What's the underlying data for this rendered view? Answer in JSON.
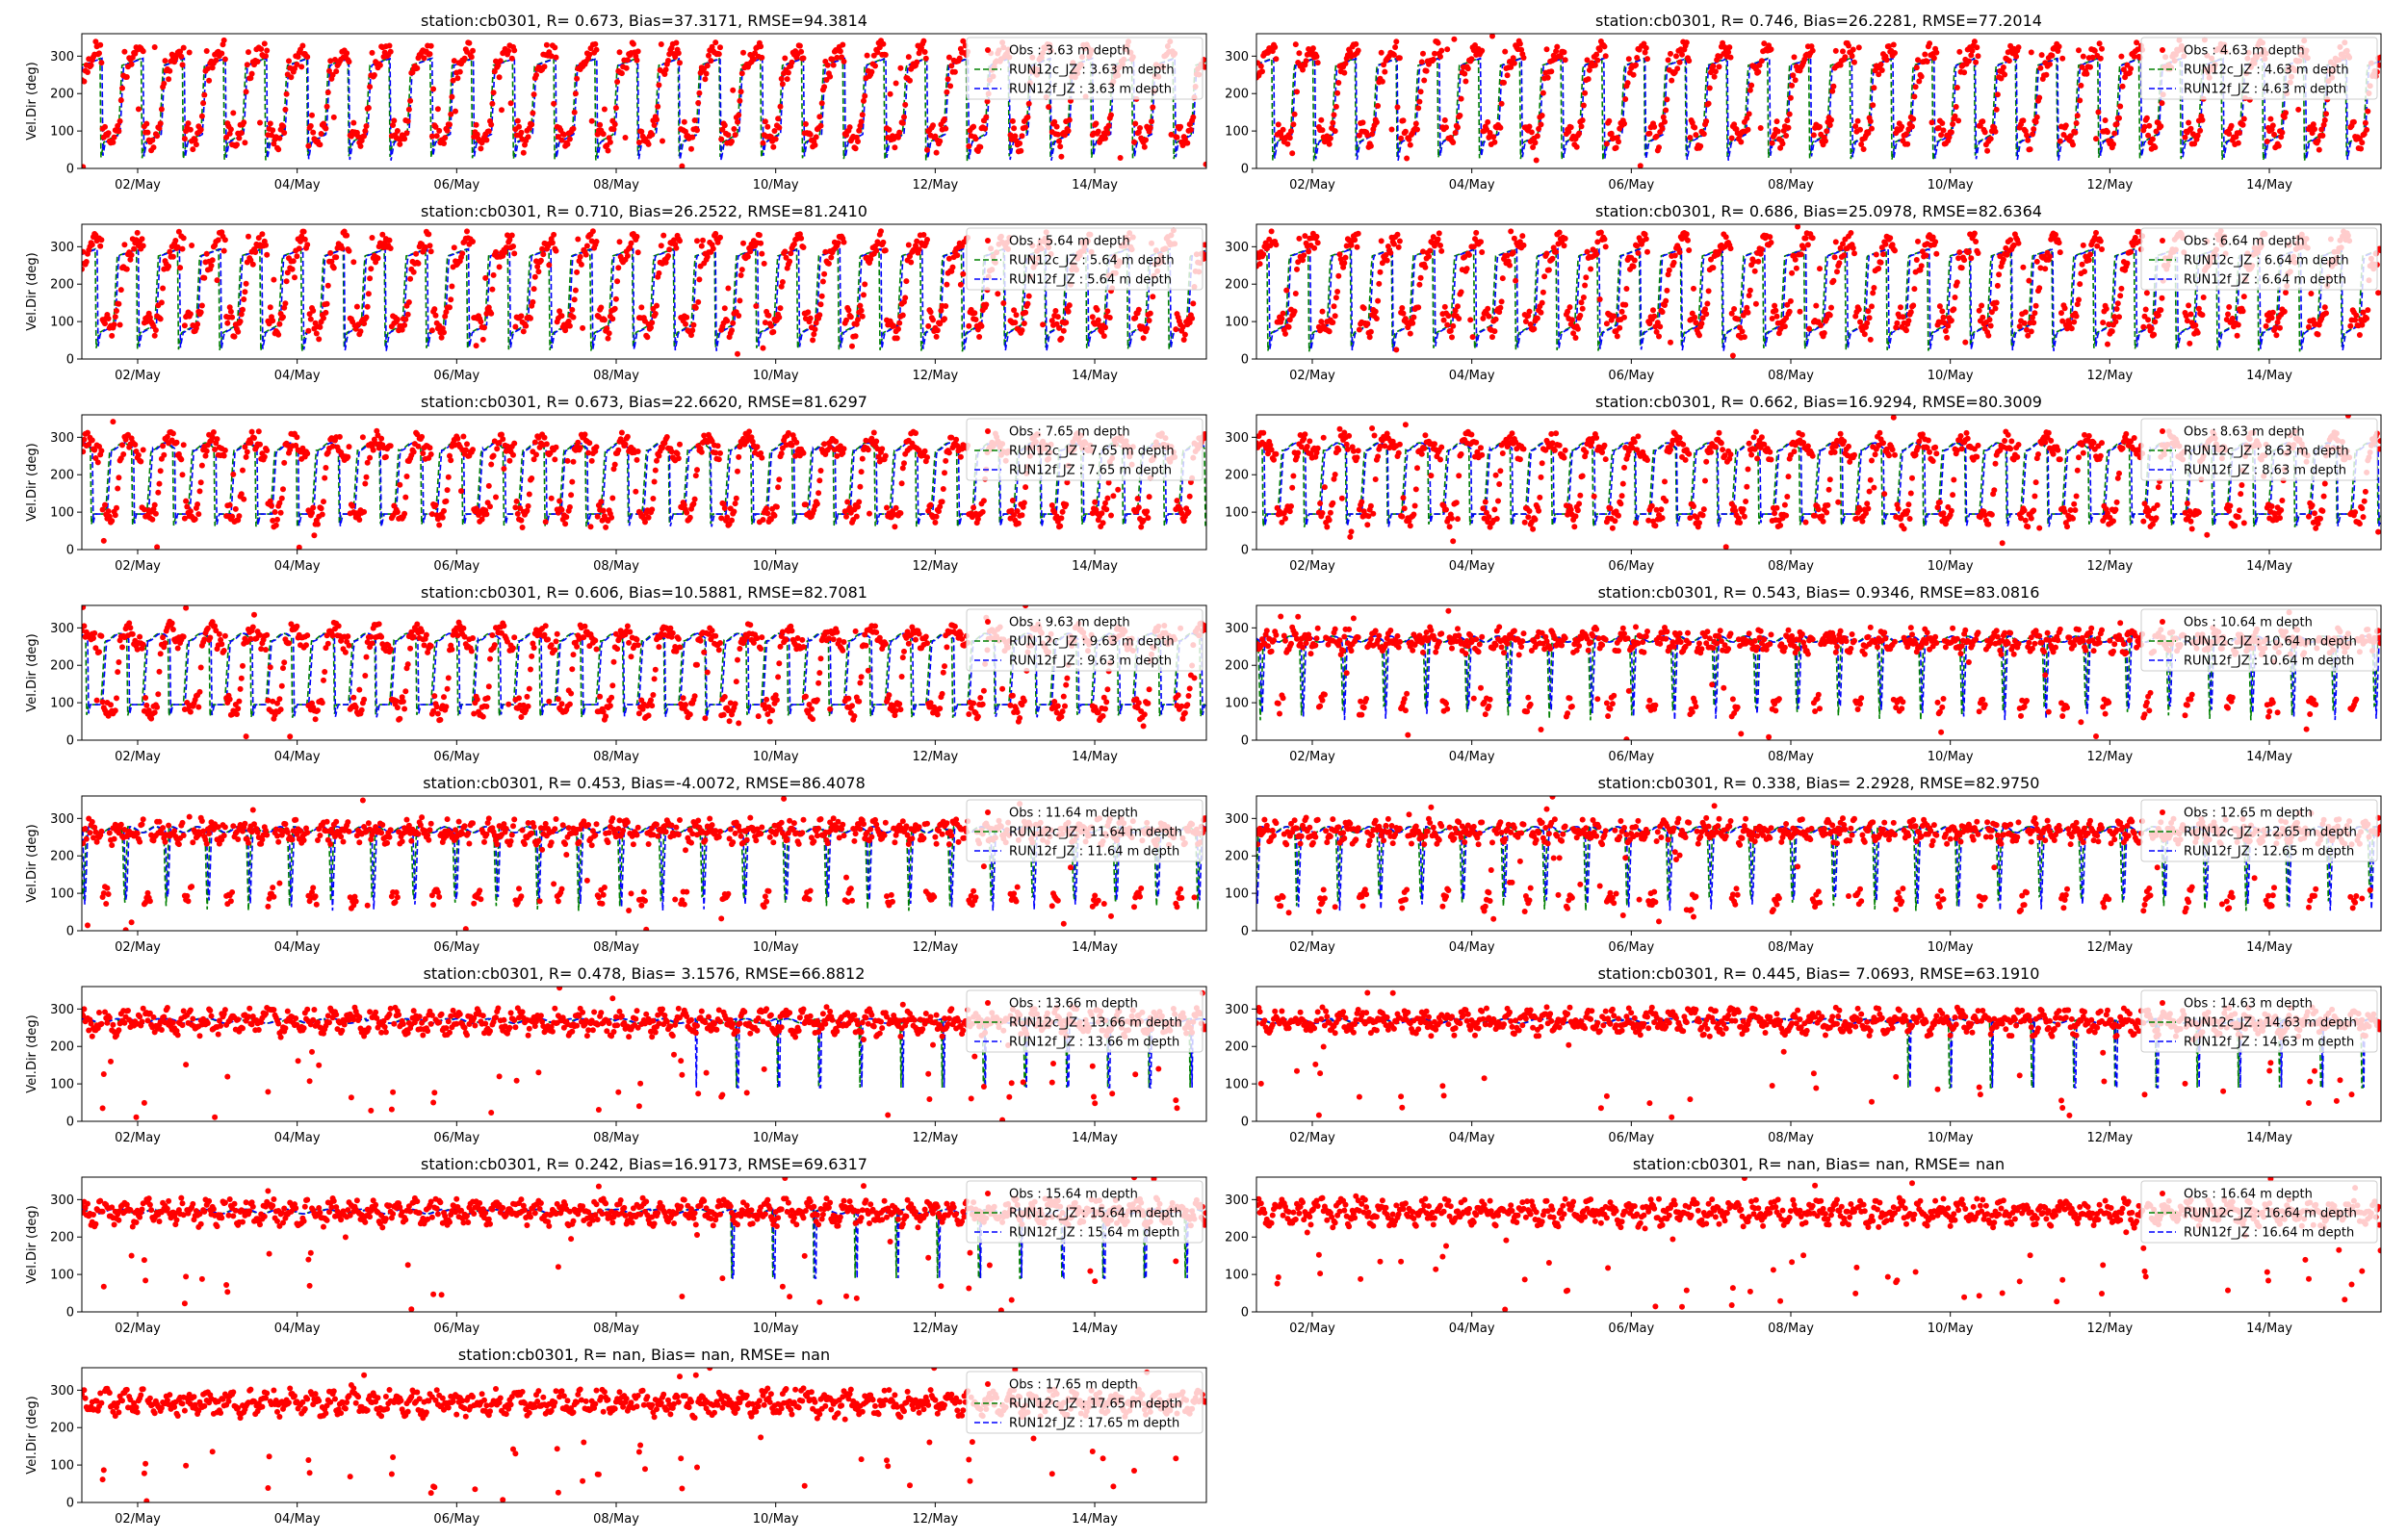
{
  "figure": {
    "x_tick_labels": [
      "02/May",
      "04/May",
      "06/May",
      "08/May",
      "10/May",
      "12/May",
      "14/May"
    ],
    "ylabel": "Vel.Dir (deg)",
    "colors": {
      "obs": "#ff0000",
      "run12c": "#008000",
      "run12f": "#0000ff"
    }
  },
  "chart_data": [
    {
      "type": "scatter",
      "title": "station:cb0301, R= 0.673, Bias=37.3171, RMSE=94.3814",
      "depth": 3.63,
      "ylabel": "Vel.Dir (deg)",
      "legend": [
        "Obs : 3.63 m depth",
        "RUN12c_JZ : 3.63 m depth",
        "RUN12f_JZ : 3.63 m depth"
      ],
      "x_range_days": [
        1.3,
        15.4
      ],
      "ylim": [
        0,
        360
      ],
      "yticks": [
        0,
        100,
        200,
        300
      ],
      "xticks": [
        2,
        4,
        6,
        8,
        10,
        12,
        14
      ],
      "x_tick_labels": [
        "02/May",
        "04/May",
        "06/May",
        "08/May",
        "10/May",
        "12/May",
        "14/May"
      ],
      "pattern": "sawtooth",
      "base": 80,
      "model_on": true
    },
    {
      "type": "scatter",
      "title": "station:cb0301, R= 0.746, Bias=26.2281, RMSE=77.2014",
      "depth": 4.63,
      "ylabel": "",
      "legend": [
        "Obs : 4.63 m depth",
        "RUN12c_JZ : 4.63 m depth",
        "RUN12f_JZ : 4.63 m depth"
      ],
      "x_range_days": [
        1.3,
        15.4
      ],
      "ylim": [
        0,
        360
      ],
      "yticks": [
        0,
        100,
        200,
        300
      ],
      "xticks": [
        2,
        4,
        6,
        8,
        10,
        12,
        14
      ],
      "x_tick_labels": [
        "02/May",
        "04/May",
        "06/May",
        "08/May",
        "10/May",
        "12/May",
        "14/May"
      ],
      "pattern": "sawtooth",
      "base": 85,
      "model_on": true
    },
    {
      "type": "scatter",
      "title": "station:cb0301, R= 0.710, Bias=26.2522, RMSE=81.2410",
      "depth": 5.64,
      "ylabel": "Vel.Dir (deg)",
      "legend": [
        "Obs : 5.64 m depth",
        "RUN12c_JZ : 5.64 m depth",
        "RUN12f_JZ : 5.64 m depth"
      ],
      "x_range_days": [
        1.3,
        15.4
      ],
      "ylim": [
        0,
        360
      ],
      "yticks": [
        0,
        100,
        200,
        300
      ],
      "xticks": [
        2,
        4,
        6,
        8,
        10,
        12,
        14
      ],
      "x_tick_labels": [
        "02/May",
        "04/May",
        "06/May",
        "08/May",
        "10/May",
        "12/May",
        "14/May"
      ],
      "pattern": "sawtooth",
      "base": 90,
      "model_on": true
    },
    {
      "type": "scatter",
      "title": "station:cb0301, R= 0.686, Bias=25.0978, RMSE=82.6364",
      "depth": 6.64,
      "ylabel": "",
      "legend": [
        "Obs : 6.64 m depth",
        "RUN12c_JZ : 6.64 m depth",
        "RUN12f_JZ : 6.64 m depth"
      ],
      "x_range_days": [
        1.3,
        15.4
      ],
      "ylim": [
        0,
        360
      ],
      "yticks": [
        0,
        100,
        200,
        300
      ],
      "xticks": [
        2,
        4,
        6,
        8,
        10,
        12,
        14
      ],
      "x_tick_labels": [
        "02/May",
        "04/May",
        "06/May",
        "08/May",
        "10/May",
        "12/May",
        "14/May"
      ],
      "pattern": "sawtooth",
      "base": 95,
      "model_on": true
    },
    {
      "type": "scatter",
      "title": "station:cb0301, R= 0.673, Bias=22.6620, RMSE=81.6297",
      "depth": 7.65,
      "ylabel": "Vel.Dir (deg)",
      "legend": [
        "Obs : 7.65 m depth",
        "RUN12c_JZ : 7.65 m depth",
        "RUN12f_JZ : 7.65 m depth"
      ],
      "x_range_days": [
        1.3,
        15.4
      ],
      "ylim": [
        0,
        360
      ],
      "yticks": [
        0,
        100,
        200,
        300
      ],
      "xticks": [
        2,
        4,
        6,
        8,
        10,
        12,
        14
      ],
      "x_tick_labels": [
        "02/May",
        "04/May",
        "06/May",
        "08/May",
        "10/May",
        "12/May",
        "14/May"
      ],
      "pattern": "square",
      "base": 95,
      "model_on": true
    },
    {
      "type": "scatter",
      "title": "station:cb0301, R= 0.662, Bias=16.9294, RMSE=80.3009",
      "depth": 8.63,
      "ylabel": "",
      "legend": [
        "Obs : 8.63 m depth",
        "RUN12c_JZ : 8.63 m depth",
        "RUN12f_JZ : 8.63 m depth"
      ],
      "x_range_days": [
        1.3,
        15.4
      ],
      "ylim": [
        0,
        360
      ],
      "yticks": [
        0,
        100,
        200,
        300
      ],
      "xticks": [
        2,
        4,
        6,
        8,
        10,
        12,
        14
      ],
      "x_tick_labels": [
        "02/May",
        "04/May",
        "06/May",
        "08/May",
        "10/May",
        "12/May",
        "14/May"
      ],
      "pattern": "square",
      "base": 90,
      "model_on": true
    },
    {
      "type": "scatter",
      "title": "station:cb0301, R= 0.606, Bias=10.5881, RMSE=82.7081",
      "depth": 9.63,
      "ylabel": "Vel.Dir (deg)",
      "legend": [
        "Obs : 9.63 m depth",
        "RUN12c_JZ : 9.63 m depth",
        "RUN12f_JZ : 9.63 m depth"
      ],
      "x_range_days": [
        1.3,
        15.4
      ],
      "ylim": [
        0,
        360
      ],
      "yticks": [
        0,
        100,
        200,
        300
      ],
      "xticks": [
        2,
        4,
        6,
        8,
        10,
        12,
        14
      ],
      "x_tick_labels": [
        "02/May",
        "04/May",
        "06/May",
        "08/May",
        "10/May",
        "12/May",
        "14/May"
      ],
      "pattern": "square",
      "base": 85,
      "model_on": true
    },
    {
      "type": "scatter",
      "title": "station:cb0301, R= 0.543, Bias= 0.9346, RMSE=83.0816",
      "depth": 10.64,
      "ylabel": "",
      "legend": [
        "Obs : 10.64 m depth",
        "RUN12c_JZ : 10.64 m depth",
        "RUN12f_JZ : 10.64 m depth"
      ],
      "x_range_days": [
        1.3,
        15.4
      ],
      "ylim": [
        0,
        360
      ],
      "yticks": [
        0,
        100,
        200,
        300
      ],
      "xticks": [
        2,
        4,
        6,
        8,
        10,
        12,
        14
      ],
      "x_tick_labels": [
        "02/May",
        "04/May",
        "06/May",
        "08/May",
        "10/May",
        "12/May",
        "14/May"
      ],
      "pattern": "dips",
      "base": 80,
      "model_on": true
    },
    {
      "type": "scatter",
      "title": "station:cb0301, R= 0.453, Bias=-4.0072, RMSE=86.4078",
      "depth": 11.64,
      "ylabel": "Vel.Dir (deg)",
      "legend": [
        "Obs : 11.64 m depth",
        "RUN12c_JZ : 11.64 m depth",
        "RUN12f_JZ : 11.64 m depth"
      ],
      "x_range_days": [
        1.3,
        15.4
      ],
      "ylim": [
        0,
        360
      ],
      "yticks": [
        0,
        100,
        200,
        300
      ],
      "xticks": [
        2,
        4,
        6,
        8,
        10,
        12,
        14
      ],
      "x_tick_labels": [
        "02/May",
        "04/May",
        "06/May",
        "08/May",
        "10/May",
        "12/May",
        "14/May"
      ],
      "pattern": "dips",
      "base": 75,
      "model_on": true
    },
    {
      "type": "scatter",
      "title": "station:cb0301, R= 0.338, Bias= 2.2928, RMSE=82.9750",
      "depth": 12.65,
      "ylabel": "",
      "legend": [
        "Obs : 12.65 m depth",
        "RUN12c_JZ : 12.65 m depth",
        "RUN12f_JZ : 12.65 m depth"
      ],
      "x_range_days": [
        1.3,
        15.4
      ],
      "ylim": [
        0,
        360
      ],
      "yticks": [
        0,
        100,
        200,
        300
      ],
      "xticks": [
        2,
        4,
        6,
        8,
        10,
        12,
        14
      ],
      "x_tick_labels": [
        "02/May",
        "04/May",
        "06/May",
        "08/May",
        "10/May",
        "12/May",
        "14/May"
      ],
      "pattern": "dips",
      "base": 70,
      "model_on": true
    },
    {
      "type": "scatter",
      "title": "station:cb0301, R= 0.478, Bias= 3.1576, RMSE=66.8812",
      "depth": 13.66,
      "ylabel": "Vel.Dir (deg)",
      "legend": [
        "Obs : 13.66 m depth",
        "RUN12c_JZ : 13.66 m depth",
        "RUN12f_JZ : 13.66 m depth"
      ],
      "x_range_days": [
        1.3,
        15.4
      ],
      "ylim": [
        0,
        360
      ],
      "yticks": [
        0,
        100,
        200,
        300
      ],
      "xticks": [
        2,
        4,
        6,
        8,
        10,
        12,
        14
      ],
      "x_tick_labels": [
        "02/May",
        "04/May",
        "06/May",
        "08/May",
        "10/May",
        "12/May",
        "14/May"
      ],
      "pattern": "flat",
      "base": 70,
      "model_on": true
    },
    {
      "type": "scatter",
      "title": "station:cb0301, R= 0.445, Bias= 7.0693, RMSE=63.1910",
      "depth": 14.63,
      "ylabel": "",
      "legend": [
        "Obs : 14.63 m depth",
        "RUN12c_JZ : 14.63 m depth",
        "RUN12f_JZ : 14.63 m depth"
      ],
      "x_range_days": [
        1.3,
        15.4
      ],
      "ylim": [
        0,
        360
      ],
      "yticks": [
        0,
        100,
        200,
        300
      ],
      "xticks": [
        2,
        4,
        6,
        8,
        10,
        12,
        14
      ],
      "x_tick_labels": [
        "02/May",
        "04/May",
        "06/May",
        "08/May",
        "10/May",
        "12/May",
        "14/May"
      ],
      "pattern": "flat",
      "base": 70,
      "model_on": true
    },
    {
      "type": "scatter",
      "title": "station:cb0301, R= 0.242, Bias=16.9173, RMSE=69.6317",
      "depth": 15.64,
      "ylabel": "Vel.Dir (deg)",
      "legend": [
        "Obs : 15.64 m depth",
        "RUN12c_JZ : 15.64 m depth",
        "RUN12f_JZ : 15.64 m depth"
      ],
      "x_range_days": [
        1.3,
        15.4
      ],
      "ylim": [
        0,
        360
      ],
      "yticks": [
        0,
        100,
        200,
        300
      ],
      "xticks": [
        2,
        4,
        6,
        8,
        10,
        12,
        14
      ],
      "x_tick_labels": [
        "02/May",
        "04/May",
        "06/May",
        "08/May",
        "10/May",
        "12/May",
        "14/May"
      ],
      "pattern": "flat",
      "base": 70,
      "model_on": true
    },
    {
      "type": "scatter",
      "title": "station:cb0301, R=   nan, Bias=    nan, RMSE=    nan",
      "depth": 16.64,
      "ylabel": "",
      "legend": [
        "Obs : 16.64 m depth",
        "RUN12c_JZ : 16.64 m depth",
        "RUN12f_JZ : 16.64 m depth"
      ],
      "x_range_days": [
        1.3,
        15.4
      ],
      "ylim": [
        0,
        360
      ],
      "yticks": [
        0,
        100,
        200,
        300
      ],
      "xticks": [
        2,
        4,
        6,
        8,
        10,
        12,
        14
      ],
      "x_tick_labels": [
        "02/May",
        "04/May",
        "06/May",
        "08/May",
        "10/May",
        "12/May",
        "14/May"
      ],
      "pattern": "flat",
      "base": 70,
      "model_on": false
    },
    {
      "type": "scatter",
      "title": "station:cb0301, R=   nan, Bias=    nan, RMSE=    nan",
      "depth": 17.65,
      "ylabel": "Vel.Dir (deg)",
      "legend": [
        "Obs : 17.65 m depth",
        "RUN12c_JZ : 17.65 m depth",
        "RUN12f_JZ : 17.65 m depth"
      ],
      "x_range_days": [
        1.3,
        15.4
      ],
      "ylim": [
        0,
        360
      ],
      "yticks": [
        0,
        100,
        200,
        300
      ],
      "xticks": [
        2,
        4,
        6,
        8,
        10,
        12,
        14
      ],
      "x_tick_labels": [
        "02/May",
        "04/May",
        "06/May",
        "08/May",
        "10/May",
        "12/May",
        "14/May"
      ],
      "pattern": "flat",
      "base": 70,
      "model_on": false
    }
  ]
}
